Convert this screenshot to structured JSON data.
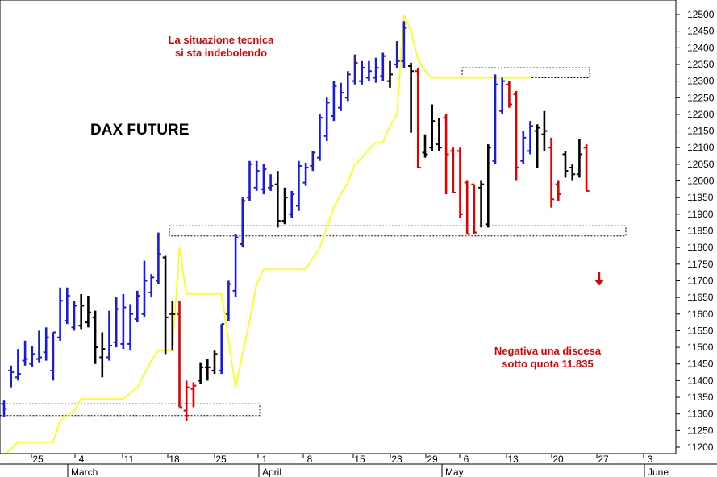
{
  "chart_data": {
    "type": "ohlc-bar",
    "title": "DAX FUTURE",
    "annotations": [
      "La situazione tecnica\nsi sta indebolendo",
      "Negativa una discesa\nsotto quota 11.835"
    ],
    "y_axis": {
      "position": "right",
      "min": 11180,
      "max": 12520,
      "ticks": [
        11200,
        11250,
        11300,
        11350,
        11400,
        11450,
        11500,
        11550,
        11600,
        11650,
        11700,
        11750,
        11800,
        11850,
        11900,
        11950,
        12000,
        12050,
        12100,
        12150,
        12200,
        12250,
        12300,
        12350,
        12400,
        12450,
        12500
      ]
    },
    "x_axis": {
      "day_ticks": [
        "25",
        "4",
        "11",
        "18",
        "25",
        "1",
        "8",
        "15",
        "23",
        "29",
        "6",
        "13",
        "20",
        "27",
        "3"
      ],
      "month_labels": [
        "March",
        "April",
        "May",
        "June"
      ]
    },
    "colors": {
      "up": "#1a1adc",
      "down": "#e00000",
      "neutral": "#000000",
      "trailing_stop": "#ffff00",
      "annotation": "#e00000",
      "arrow": "#e00000"
    },
    "horizontal_bands": [
      {
        "low": 11295,
        "high": 11330
      },
      {
        "low": 11835,
        "high": 11865
      },
      {
        "low": 12310,
        "high": 12340
      }
    ],
    "trailing_stop": [
      [
        0,
        11175
      ],
      [
        2,
        11215
      ],
      [
        7,
        11215
      ],
      [
        8,
        11280
      ],
      [
        10,
        11310
      ],
      [
        11,
        11345
      ],
      [
        17,
        11345
      ],
      [
        19,
        11380
      ],
      [
        21,
        11460
      ],
      [
        22,
        11490
      ],
      [
        24,
        11490
      ],
      [
        25,
        11800
      ],
      [
        26,
        11660
      ],
      [
        31,
        11660
      ],
      [
        33,
        11380
      ],
      [
        35,
        11580
      ],
      [
        36,
        11690
      ],
      [
        37,
        11735
      ],
      [
        43,
        11735
      ],
      [
        45,
        11800
      ],
      [
        47,
        11920
      ],
      [
        48,
        11960
      ],
      [
        49,
        11995
      ],
      [
        50,
        12050
      ],
      [
        51,
        12070
      ],
      [
        52,
        12095
      ],
      [
        53,
        12115
      ],
      [
        54,
        12115
      ],
      [
        55,
        12165
      ],
      [
        56,
        12200
      ],
      [
        57,
        12500
      ],
      [
        58,
        12450
      ],
      [
        59,
        12365
      ],
      [
        60,
        12330
      ],
      [
        61,
        12310
      ],
      [
        70,
        12310
      ],
      [
        75,
        12310
      ]
    ],
    "bars": [
      {
        "i": 0,
        "h": 11340,
        "l": 11290,
        "o": 11330,
        "c": 11315,
        "d": "up"
      },
      {
        "i": 1,
        "h": 11445,
        "l": 11380,
        "o": 11430,
        "c": 11425,
        "d": "up"
      },
      {
        "i": 2,
        "h": 11495,
        "l": 11400,
        "o": 11410,
        "c": 11420,
        "d": "up"
      },
      {
        "i": 3,
        "h": 11520,
        "l": 11445,
        "o": 11460,
        "c": 11465,
        "d": "up"
      },
      {
        "i": 4,
        "h": 11505,
        "l": 11440,
        "o": 11450,
        "c": 11480,
        "d": "up"
      },
      {
        "i": 5,
        "h": 11550,
        "l": 11455,
        "o": 11465,
        "c": 11470,
        "d": "up"
      },
      {
        "i": 6,
        "h": 11560,
        "l": 11460,
        "o": 11485,
        "c": 11530,
        "d": "up"
      },
      {
        "i": 7,
        "h": 11545,
        "l": 11400,
        "o": 11430,
        "c": 11545,
        "d": "up"
      },
      {
        "i": 8,
        "h": 11680,
        "l": 11520,
        "o": 11530,
        "c": 11640,
        "d": "up"
      },
      {
        "i": 9,
        "h": 11680,
        "l": 11570,
        "o": 11580,
        "c": 11655,
        "d": "up"
      },
      {
        "i": 10,
        "h": 11640,
        "l": 11550,
        "o": 11560,
        "c": 11625,
        "d": "up"
      },
      {
        "i": 11,
        "h": 11660,
        "l": 11555,
        "o": 11565,
        "c": 11625,
        "d": "neutral"
      },
      {
        "i": 12,
        "h": 11655,
        "l": 11560,
        "o": 11575,
        "c": 11605,
        "d": "neutral"
      },
      {
        "i": 13,
        "h": 11610,
        "l": 11450,
        "o": 11590,
        "c": 11500,
        "d": "neutral"
      },
      {
        "i": 14,
        "h": 11545,
        "l": 11410,
        "o": 11470,
        "c": 11495,
        "d": "neutral"
      },
      {
        "i": 15,
        "h": 11610,
        "l": 11460,
        "o": 11470,
        "c": 11505,
        "d": "up"
      },
      {
        "i": 16,
        "h": 11650,
        "l": 11500,
        "o": 11515,
        "c": 11615,
        "d": "up"
      },
      {
        "i": 17,
        "h": 11660,
        "l": 11495,
        "o": 11510,
        "c": 11620,
        "d": "up"
      },
      {
        "i": 18,
        "h": 11630,
        "l": 11490,
        "o": 11510,
        "c": 11600,
        "d": "up"
      },
      {
        "i": 19,
        "h": 11670,
        "l": 11575,
        "o": 11585,
        "c": 11655,
        "d": "up"
      },
      {
        "i": 20,
        "h": 11760,
        "l": 11590,
        "o": 11600,
        "c": 11700,
        "d": "up"
      },
      {
        "i": 21,
        "h": 11720,
        "l": 11650,
        "o": 11665,
        "c": 11710,
        "d": "up"
      },
      {
        "i": 22,
        "h": 11845,
        "l": 11690,
        "o": 11700,
        "c": 11780,
        "d": "up"
      },
      {
        "i": 23,
        "h": 11775,
        "l": 11480,
        "o": 11770,
        "c": 11590,
        "d": "neutral"
      },
      {
        "i": 24,
        "h": 11640,
        "l": 11490,
        "o": 11600,
        "c": 11600,
        "d": "neutral"
      },
      {
        "i": 25,
        "h": 11640,
        "l": 11320,
        "o": 11600,
        "c": 11320,
        "d": "down"
      },
      {
        "i": 26,
        "h": 11400,
        "l": 11280,
        "o": 11310,
        "c": 11380,
        "d": "down"
      },
      {
        "i": 27,
        "h": 11395,
        "l": 11320,
        "o": 11375,
        "c": 11385,
        "d": "down"
      },
      {
        "i": 28,
        "h": 11455,
        "l": 11390,
        "o": 11400,
        "c": 11440,
        "d": "neutral"
      },
      {
        "i": 29,
        "h": 11465,
        "l": 11400,
        "o": 11440,
        "c": 11440,
        "d": "neutral"
      },
      {
        "i": 30,
        "h": 11490,
        "l": 11420,
        "o": 11430,
        "c": 11480,
        "d": "neutral"
      },
      {
        "i": 31,
        "h": 11570,
        "l": 11420,
        "o": 11430,
        "c": 11570,
        "d": "up"
      },
      {
        "i": 32,
        "h": 11700,
        "l": 11580,
        "o": 11600,
        "c": 11690,
        "d": "up"
      },
      {
        "i": 33,
        "h": 11840,
        "l": 11650,
        "o": 11670,
        "c": 11830,
        "d": "up"
      },
      {
        "i": 34,
        "h": 11950,
        "l": 11800,
        "o": 11810,
        "c": 11940,
        "d": "up"
      },
      {
        "i": 35,
        "h": 12060,
        "l": 11940,
        "o": 11950,
        "c": 12050,
        "d": "up"
      },
      {
        "i": 36,
        "h": 12060,
        "l": 11970,
        "o": 11980,
        "c": 12030,
        "d": "up"
      },
      {
        "i": 37,
        "h": 12050,
        "l": 11960,
        "o": 11975,
        "c": 12035,
        "d": "up"
      },
      {
        "i": 38,
        "h": 12020,
        "l": 11970,
        "o": 11980,
        "c": 11985,
        "d": "up"
      },
      {
        "i": 39,
        "h": 12030,
        "l": 11860,
        "o": 11990,
        "c": 11880,
        "d": "neutral"
      },
      {
        "i": 40,
        "h": 11980,
        "l": 11870,
        "o": 11880,
        "c": 11950,
        "d": "neutral"
      },
      {
        "i": 41,
        "h": 11970,
        "l": 11890,
        "o": 11900,
        "c": 11960,
        "d": "up"
      },
      {
        "i": 42,
        "h": 12060,
        "l": 11910,
        "o": 11925,
        "c": 12045,
        "d": "up"
      },
      {
        "i": 43,
        "h": 12055,
        "l": 11985,
        "o": 11995,
        "c": 12040,
        "d": "up"
      },
      {
        "i": 44,
        "h": 12090,
        "l": 12030,
        "o": 12045,
        "c": 12085,
        "d": "up"
      },
      {
        "i": 45,
        "h": 12200,
        "l": 12060,
        "o": 12070,
        "c": 12190,
        "d": "up"
      },
      {
        "i": 46,
        "h": 12250,
        "l": 12120,
        "o": 12135,
        "c": 12235,
        "d": "up"
      },
      {
        "i": 47,
        "h": 12300,
        "l": 12180,
        "o": 12195,
        "c": 12285,
        "d": "up"
      },
      {
        "i": 48,
        "h": 12295,
        "l": 12210,
        "o": 12220,
        "c": 12265,
        "d": "up"
      },
      {
        "i": 49,
        "h": 12330,
        "l": 12240,
        "o": 12250,
        "c": 12320,
        "d": "up"
      },
      {
        "i": 50,
        "h": 12380,
        "l": 12290,
        "o": 12300,
        "c": 12355,
        "d": "up"
      },
      {
        "i": 51,
        "h": 12360,
        "l": 12290,
        "o": 12300,
        "c": 12340,
        "d": "up"
      },
      {
        "i": 52,
        "h": 12360,
        "l": 12300,
        "o": 12310,
        "c": 12330,
        "d": "up"
      },
      {
        "i": 53,
        "h": 12370,
        "l": 12295,
        "o": 12310,
        "c": 12340,
        "d": "up"
      },
      {
        "i": 54,
        "h": 12385,
        "l": 12300,
        "o": 12315,
        "c": 12375,
        "d": "up"
      },
      {
        "i": 55,
        "h": 12360,
        "l": 12280,
        "o": 12300,
        "c": 12320,
        "d": "neutral"
      },
      {
        "i": 56,
        "h": 12420,
        "l": 12340,
        "o": 12350,
        "c": 12360,
        "d": "up"
      },
      {
        "i": 57,
        "h": 12480,
        "l": 12340,
        "o": 12360,
        "c": 12460,
        "d": "up"
      },
      {
        "i": 58,
        "h": 12355,
        "l": 12145,
        "o": 12345,
        "c": 12330,
        "d": "neutral"
      },
      {
        "i": 59,
        "h": 12340,
        "l": 12040,
        "o": 12330,
        "c": 12040,
        "d": "down"
      },
      {
        "i": 60,
        "h": 12140,
        "l": 12070,
        "o": 12085,
        "c": 12080,
        "d": "neutral"
      },
      {
        "i": 61,
        "h": 12230,
        "l": 12090,
        "o": 12100,
        "c": 12180,
        "d": "neutral"
      },
      {
        "i": 62,
        "h": 12190,
        "l": 12090,
        "o": 12110,
        "c": 12100,
        "d": "neutral"
      },
      {
        "i": 63,
        "h": 12200,
        "l": 11960,
        "o": 12190,
        "c": 12080,
        "d": "down"
      },
      {
        "i": 64,
        "h": 12100,
        "l": 11965,
        "o": 12090,
        "c": 11965,
        "d": "down"
      },
      {
        "i": 65,
        "h": 12100,
        "l": 11890,
        "o": 12090,
        "c": 11900,
        "d": "down"
      },
      {
        "i": 66,
        "h": 12000,
        "l": 11840,
        "o": 11995,
        "c": 11840,
        "d": "down"
      },
      {
        "i": 67,
        "h": 11990,
        "l": 11840,
        "o": 11990,
        "c": 11845,
        "d": "down"
      },
      {
        "i": 68,
        "h": 12000,
        "l": 11860,
        "o": 11980,
        "c": 11990,
        "d": "neutral"
      },
      {
        "i": 69,
        "h": 12110,
        "l": 11860,
        "o": 11870,
        "c": 12100,
        "d": "neutral"
      },
      {
        "i": 70,
        "h": 12320,
        "l": 12050,
        "o": 12060,
        "c": 12290,
        "d": "up"
      },
      {
        "i": 71,
        "h": 12310,
        "l": 12200,
        "o": 12210,
        "c": 12300,
        "d": "up"
      },
      {
        "i": 72,
        "h": 12300,
        "l": 12220,
        "o": 12290,
        "c": 12230,
        "d": "down"
      },
      {
        "i": 73,
        "h": 12270,
        "l": 12000,
        "o": 12260,
        "c": 12040,
        "d": "down"
      },
      {
        "i": 74,
        "h": 12150,
        "l": 12050,
        "o": 12060,
        "c": 12130,
        "d": "up"
      },
      {
        "i": 75,
        "h": 12180,
        "l": 12080,
        "o": 12090,
        "c": 12165,
        "d": "up"
      },
      {
        "i": 76,
        "h": 12170,
        "l": 12040,
        "o": 12150,
        "c": 12160,
        "d": "neutral"
      },
      {
        "i": 77,
        "h": 12210,
        "l": 12090,
        "o": 12140,
        "c": 12150,
        "d": "neutral"
      },
      {
        "i": 78,
        "h": 12130,
        "l": 11920,
        "o": 12100,
        "c": 11945,
        "d": "down"
      },
      {
        "i": 79,
        "h": 12000,
        "l": 11940,
        "o": 11990,
        "c": 11960,
        "d": "down"
      },
      {
        "i": 80,
        "h": 12090,
        "l": 12010,
        "o": 12080,
        "c": 12030,
        "d": "neutral"
      },
      {
        "i": 81,
        "h": 12050,
        "l": 12000,
        "o": 12040,
        "c": 12020,
        "d": "neutral"
      },
      {
        "i": 82,
        "h": 12125,
        "l": 12010,
        "o": 12020,
        "c": 12080,
        "d": "neutral"
      },
      {
        "i": 83,
        "h": 12110,
        "l": 11970,
        "o": 12100,
        "c": 11970,
        "d": "down"
      }
    ],
    "arrow_value": 11705
  }
}
